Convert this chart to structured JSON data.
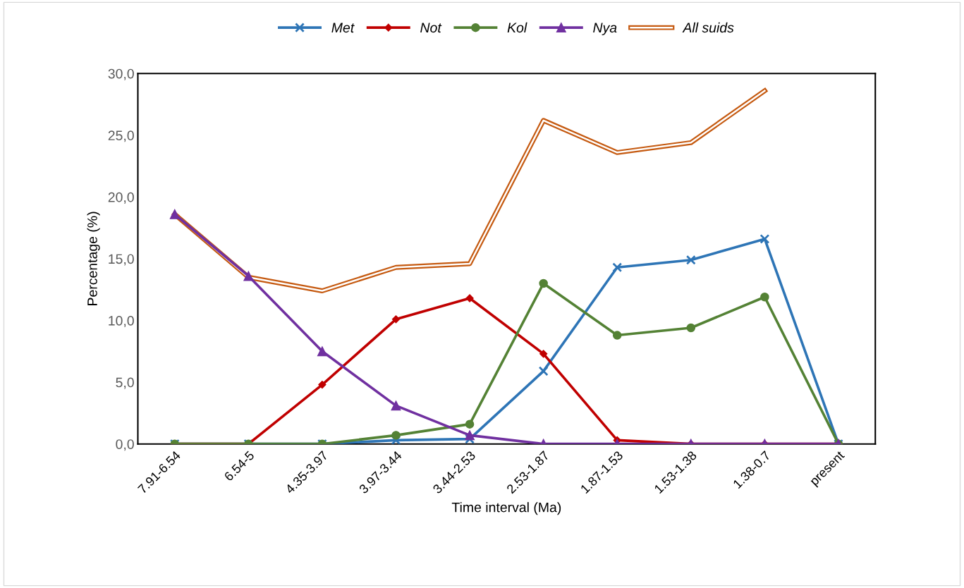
{
  "chart_data": {
    "type": "line",
    "xlabel": "Time interval (Ma)",
    "ylabel": "Percentage (%)",
    "categories": [
      "7.91-6.54",
      "6.54-5",
      "4.35-3.97",
      "3.97-3.44",
      "3.44-2.53",
      "2.53-1.87",
      "1.87-1.53",
      "1.53-1.38",
      "1.38-0.7",
      "present"
    ],
    "ylim": [
      0,
      30
    ],
    "yticks": [
      {
        "value": 0,
        "label": "0,0"
      },
      {
        "value": 5,
        "label": "5,0"
      },
      {
        "value": 10,
        "label": "10,0"
      },
      {
        "value": 15,
        "label": "15,0"
      },
      {
        "value": 20,
        "label": "20,0"
      },
      {
        "value": 25,
        "label": "25,0"
      },
      {
        "value": 30,
        "label": "30,0"
      }
    ],
    "grid": false,
    "legend": "top",
    "series": [
      {
        "name": "Met",
        "color": "#2e75b6",
        "marker": "cross",
        "line_style": "solid",
        "values": [
          0,
          0,
          0,
          0.3,
          0.4,
          5.9,
          14.3,
          14.9,
          16.6,
          0
        ]
      },
      {
        "name": "Not",
        "color": "#c00000",
        "marker": "diamond",
        "line_style": "solid",
        "values": [
          0,
          0,
          4.8,
          10.1,
          11.8,
          7.3,
          0.3,
          0,
          0,
          0
        ]
      },
      {
        "name": "Kol",
        "color": "#548235",
        "marker": "circle",
        "line_style": "solid",
        "values": [
          0,
          0,
          0,
          0.7,
          1.6,
          13.0,
          8.8,
          9.4,
          11.9,
          0
        ]
      },
      {
        "name": "Nya",
        "color": "#7030a0",
        "marker": "triangle",
        "line_style": "solid",
        "values": [
          18.6,
          13.6,
          7.5,
          3.1,
          0.7,
          0,
          0,
          0,
          0,
          0
        ]
      },
      {
        "name": "All suids",
        "color": "#c55a11",
        "marker": "none",
        "line_style": "solid",
        "values": [
          18.6,
          13.5,
          12.4,
          14.3,
          14.6,
          26.2,
          23.6,
          24.4,
          28.6,
          null
        ]
      }
    ]
  }
}
